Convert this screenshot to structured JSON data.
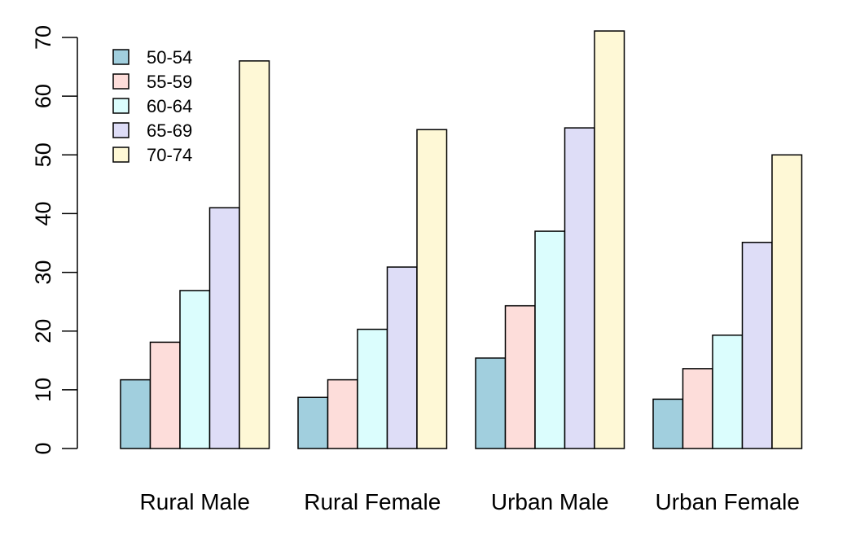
{
  "chart_data": {
    "type": "bar",
    "grouped": true,
    "categories": [
      "Rural Male",
      "Rural Female",
      "Urban Male",
      "Urban Female"
    ],
    "series": [
      {
        "name": "50-54",
        "color": "#A1CFDE",
        "values": [
          11.7,
          8.7,
          15.4,
          8.4
        ]
      },
      {
        "name": "55-59",
        "color": "#FDDDDA",
        "values": [
          18.1,
          11.7,
          24.3,
          13.6
        ]
      },
      {
        "name": "60-64",
        "color": "#DBFDFD",
        "values": [
          26.9,
          20.3,
          37.0,
          19.3
        ]
      },
      {
        "name": "65-69",
        "color": "#DEDDF7",
        "values": [
          41.0,
          30.9,
          54.6,
          35.1
        ]
      },
      {
        "name": "70-74",
        "color": "#FEF8D6",
        "values": [
          66.0,
          54.3,
          71.1,
          50.0
        ]
      }
    ],
    "yticks": [
      0,
      10,
      20,
      30,
      40,
      50,
      60,
      70
    ],
    "ylim": [
      0,
      70
    ],
    "title": "",
    "xlabel": "",
    "ylabel": "",
    "legend_position": "top-left",
    "grid": false
  }
}
